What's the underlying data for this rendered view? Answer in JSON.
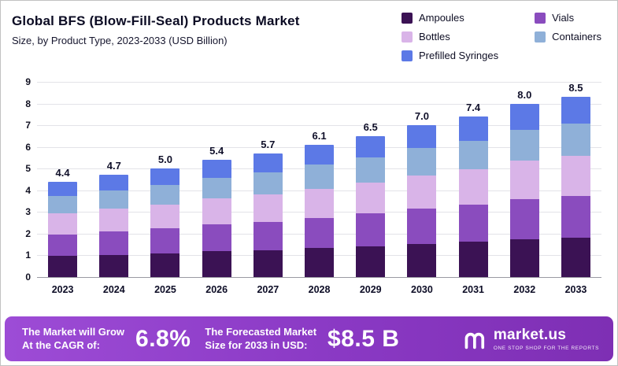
{
  "header": {
    "title": "Global BFS (Blow-Fill-Seal) Products Market",
    "subtitle": "Size, by Product Type, 2023-2033 (USD Billion)"
  },
  "chart_data": {
    "type": "bar",
    "stacked": true,
    "title": "Global BFS (Blow-Fill-Seal) Products Market Size, by Product Type, 2023-2033 (USD Billion)",
    "xlabel": "",
    "ylabel": "",
    "ylim": [
      0,
      9
    ],
    "ytick_step": 1,
    "grid": true,
    "legend_position": "top-right",
    "categories": [
      "2023",
      "2024",
      "2025",
      "2026",
      "2027",
      "2028",
      "2029",
      "2030",
      "2031",
      "2032",
      "2033"
    ],
    "totals": [
      4.4,
      4.7,
      5.0,
      5.4,
      5.7,
      6.1,
      6.5,
      7.0,
      7.4,
      8.0,
      8.5
    ],
    "series": [
      {
        "name": "Ampoules",
        "color": "#3b1254",
        "values": [
          0.97,
          1.03,
          1.1,
          1.19,
          1.25,
          1.34,
          1.43,
          1.54,
          1.63,
          1.76,
          1.87
        ]
      },
      {
        "name": "Vials",
        "color": "#8a4cbe",
        "values": [
          1.01,
          1.08,
          1.15,
          1.24,
          1.31,
          1.4,
          1.5,
          1.61,
          1.7,
          1.84,
          1.96
        ]
      },
      {
        "name": "Bottles",
        "color": "#d9b4e8",
        "values": [
          0.97,
          1.03,
          1.1,
          1.19,
          1.25,
          1.34,
          1.43,
          1.54,
          1.63,
          1.76,
          1.87
        ]
      },
      {
        "name": "Containers",
        "color": "#8fb0d8",
        "values": [
          0.79,
          0.85,
          0.9,
          0.97,
          1.03,
          1.1,
          1.17,
          1.26,
          1.33,
          1.44,
          1.53
        ]
      },
      {
        "name": "Prefilled Syringes",
        "color": "#5c79e6",
        "values": [
          0.66,
          0.71,
          0.75,
          0.81,
          0.86,
          0.92,
          0.97,
          1.05,
          1.11,
          1.2,
          1.27
        ]
      }
    ]
  },
  "banner": {
    "cagr_label_line1": "The Market will Grow",
    "cagr_label_line2": "At the CAGR of:",
    "cagr_value": "6.8%",
    "forecast_label_line1": "The Forecasted Market",
    "forecast_label_line2": "Size for 2033 in USD:",
    "forecast_value": "$8.5 B",
    "logo_text": "market.us",
    "logo_tagline": "One Stop Shop For The Reports"
  }
}
